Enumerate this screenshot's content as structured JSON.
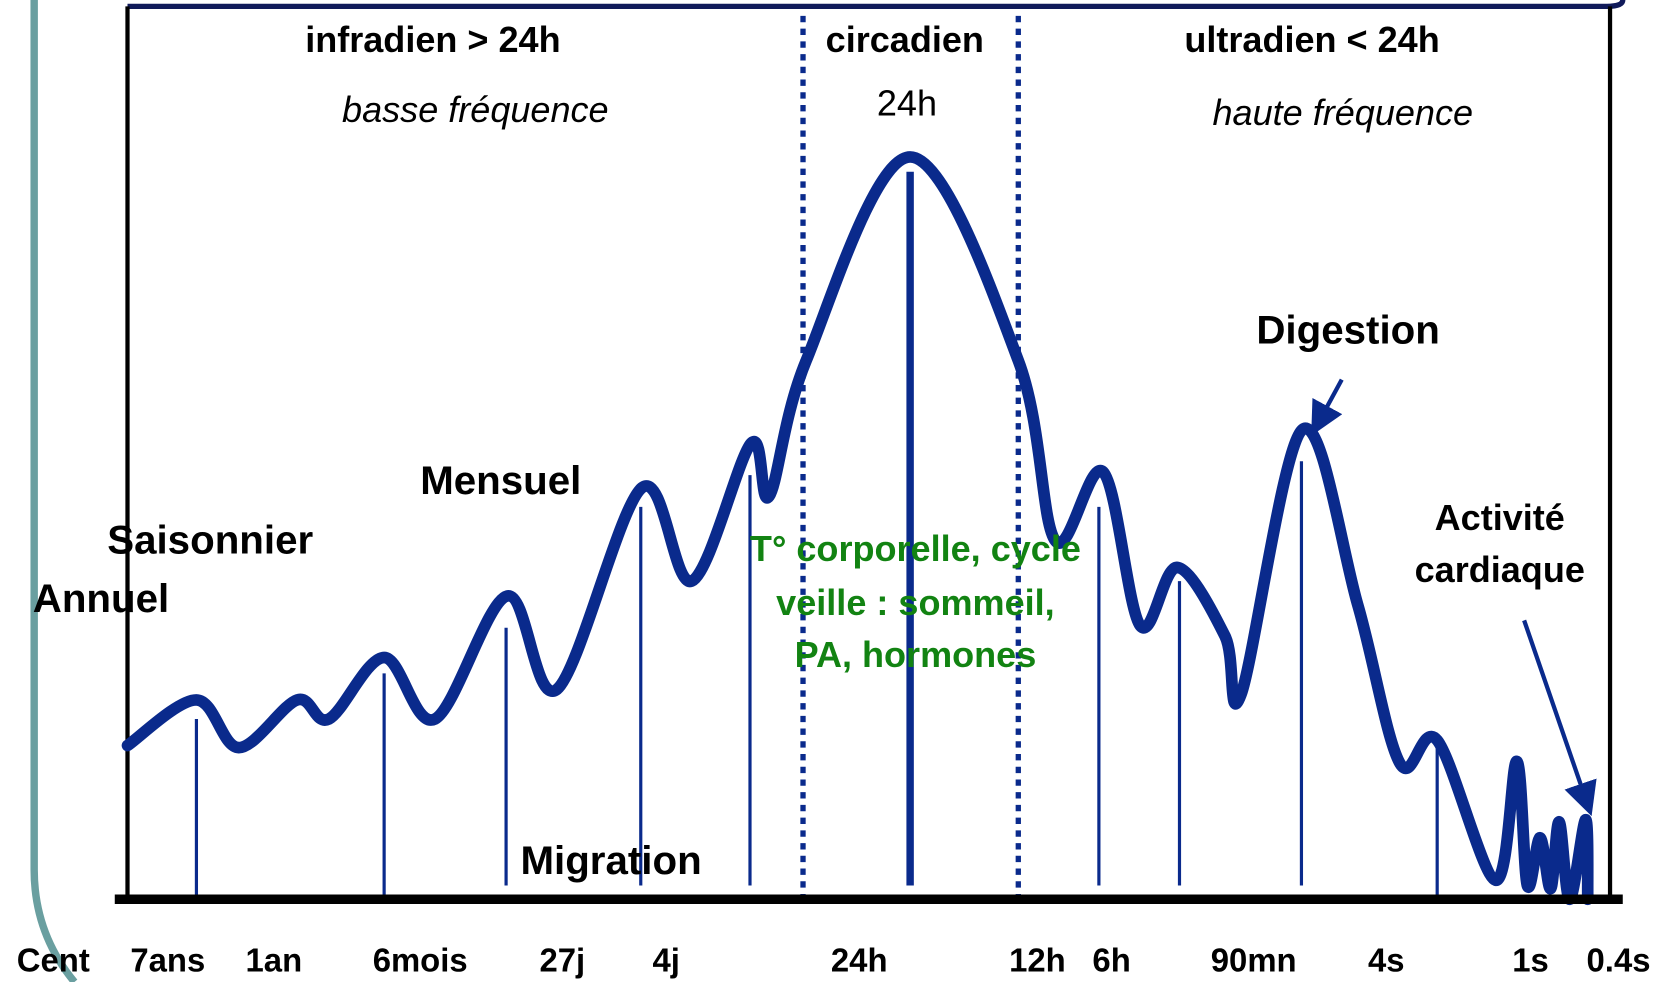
{
  "regions": {
    "infra": {
      "title": "infradien > 24h",
      "subtitle": "basse fréquence"
    },
    "circa": {
      "title": "circadien",
      "subtitle": "24h"
    },
    "ultra": {
      "title": "ultradien < 24h",
      "subtitle": "haute fréquence"
    }
  },
  "labels": {
    "saisonnier": "Saisonnier",
    "annuel": "Annuel",
    "mensuel": "Mensuel",
    "migration": "Migration",
    "circadian_note": [
      "T° corporelle, cycle",
      "veille : sommeil,",
      "PA, hormones"
    ],
    "digestion": "Digestion",
    "cardiaque": [
      "Activité",
      "cardiaque"
    ]
  },
  "axis_labels": [
    "Cent",
    "7ans",
    "1an",
    "6mois",
    "27j",
    "4j",
    "24h",
    "12h",
    "6h",
    "90mn",
    "4s",
    "1s",
    "0.4s"
  ]
}
